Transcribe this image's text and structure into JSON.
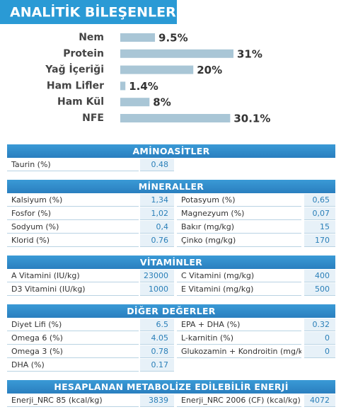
{
  "chart_data": {
    "type": "bar",
    "title": "ANALİTİK BİLEŞENLER",
    "categories": [
      "Nem",
      "Protein",
      "Yağ İçeriği",
      "Ham Lifler",
      "Ham Kül",
      "NFE"
    ],
    "values": [
      9.5,
      31,
      20,
      1.4,
      8,
      30.1
    ],
    "value_labels": [
      "9.5%",
      "31%",
      "20%",
      "1.4%",
      "8%",
      "30.1%"
    ],
    "color": "#a9c6d6"
  },
  "tables": {
    "sections": [
      {
        "title": "AMİNOASİTLER",
        "rows": [
          [
            "Taurin (%)",
            "0.48"
          ]
        ]
      },
      {
        "title": "MİNERALLER",
        "rows": [
          [
            "Kalsiyum (%)",
            "1,34",
            "Potasyum (%)",
            "0,65"
          ],
          [
            "Fosfor (%)",
            "1,02",
            "Magnezyum (%)",
            "0,07"
          ],
          [
            "Sodyum (%)",
            "0,4",
            "Bakır (mg/kg)",
            "15"
          ],
          [
            "Klorid (%)",
            "0.76",
            "Çinko (mg/kg)",
            "170"
          ]
        ]
      },
      {
        "title": "VİTAMİNLER",
        "rows": [
          [
            "A Vitamini (IU/kg)",
            "23000",
            "C Vitamini (mg/kg)",
            "400"
          ],
          [
            "D3 Vitamini (IU/kg)",
            "1000",
            "E Vitamini (mg/kg)",
            "500"
          ]
        ]
      },
      {
        "title": "DİĞER DEĞERLER",
        "rows": [
          [
            "Diyet Lifi (%)",
            "6.5",
            "EPA + DHA (%)",
            "0.32"
          ],
          [
            "Omega 6 (%)",
            "4.05",
            "L-karnitin (%)",
            "0"
          ],
          [
            "Omega 3 (%)",
            "0.78",
            "Glukozamin + Kondroitin (mg/kg)",
            "0"
          ],
          [
            "DHA (%)",
            "0.17"
          ]
        ]
      },
      {
        "title": "HESAPLANAN METABOLİZE EDİLEBİLİR ENERJİ",
        "rows": [
          [
            "Enerji_NRC 85 (kcal/kg)",
            "3839",
            "Enerji_NRC 2006 (CF) (kcal/kg)",
            "4072"
          ]
        ]
      }
    ]
  }
}
